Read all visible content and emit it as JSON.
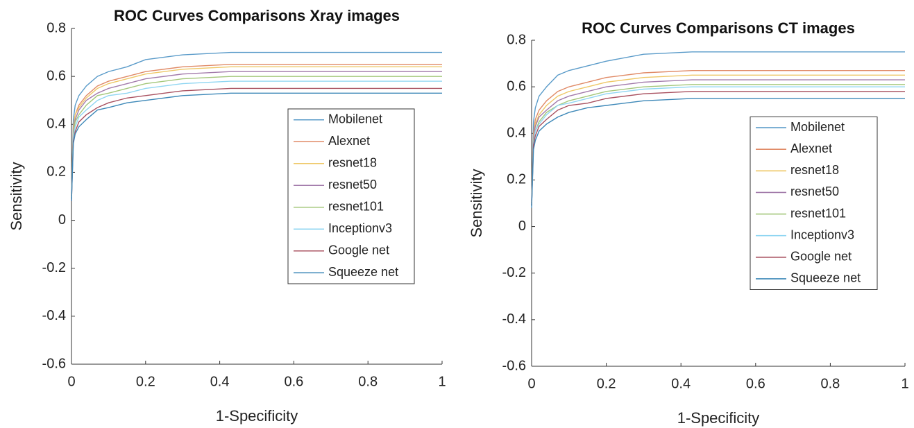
{
  "chart_data": [
    {
      "type": "line",
      "title": "ROC Curves Comparisons Xray images",
      "xlabel": "1-Specificity",
      "ylabel": "Sensitivity",
      "x": [
        0,
        0.005,
        0.01,
        0.02,
        0.04,
        0.07,
        0.1,
        0.15,
        0.2,
        0.3,
        0.43,
        1
      ],
      "xlim": [
        0,
        1
      ],
      "xticks": [
        0,
        0.2,
        0.4,
        0.6,
        0.8,
        1
      ],
      "ylim": [
        -0.6,
        0.8
      ],
      "yticks": [
        -0.6,
        -0.4,
        -0.2,
        0,
        0.2,
        0.4,
        0.6,
        0.8
      ],
      "legend": "east",
      "series": [
        {
          "name": "Mobilenet",
          "color": "#5a9bc9",
          "values": [
            0.11,
            0.42,
            0.48,
            0.52,
            0.56,
            0.6,
            0.62,
            0.64,
            0.67,
            0.69,
            0.7,
            0.7
          ]
        },
        {
          "name": "Alexnet",
          "color": "#e08a66",
          "values": [
            0.1,
            0.39,
            0.44,
            0.48,
            0.52,
            0.56,
            0.58,
            0.6,
            0.62,
            0.64,
            0.65,
            0.65
          ]
        },
        {
          "name": "resnet18",
          "color": "#eec766",
          "values": [
            0.1,
            0.38,
            0.44,
            0.47,
            0.51,
            0.55,
            0.57,
            0.59,
            0.61,
            0.63,
            0.64,
            0.64
          ]
        },
        {
          "name": "resnet50",
          "color": "#a27aaa",
          "values": [
            0.09,
            0.37,
            0.42,
            0.46,
            0.5,
            0.53,
            0.55,
            0.57,
            0.59,
            0.61,
            0.62,
            0.62
          ]
        },
        {
          "name": "resnet101",
          "color": "#a3c77a",
          "values": [
            0.09,
            0.36,
            0.41,
            0.44,
            0.48,
            0.52,
            0.53,
            0.55,
            0.57,
            0.59,
            0.6,
            0.6
          ]
        },
        {
          "name": "Inceptionv3",
          "color": "#8fd6f2",
          "values": [
            0.09,
            0.35,
            0.39,
            0.43,
            0.46,
            0.5,
            0.52,
            0.53,
            0.55,
            0.57,
            0.58,
            0.58
          ]
        },
        {
          "name": "Google net",
          "color": "#a8505f",
          "values": [
            0.08,
            0.33,
            0.37,
            0.41,
            0.44,
            0.47,
            0.49,
            0.51,
            0.52,
            0.54,
            0.55,
            0.55
          ]
        },
        {
          "name": "Squeeze net",
          "color": "#3d88b8",
          "values": [
            0.08,
            0.32,
            0.36,
            0.39,
            0.42,
            0.46,
            0.47,
            0.49,
            0.5,
            0.52,
            0.53,
            0.53
          ]
        }
      ]
    },
    {
      "type": "line",
      "title": "ROC Curves Comparisons CT images",
      "xlabel": "1-Specificity",
      "ylabel": "Sensitivity",
      "x": [
        0,
        0.005,
        0.01,
        0.02,
        0.04,
        0.07,
        0.1,
        0.15,
        0.2,
        0.3,
        0.43,
        1
      ],
      "xlim": [
        0,
        1
      ],
      "xticks": [
        0,
        0.2,
        0.4,
        0.6,
        0.8,
        1
      ],
      "ylim": [
        -0.6,
        0.8
      ],
      "yticks": [
        -0.6,
        -0.4,
        -0.2,
        0,
        0.2,
        0.4,
        0.6,
        0.8
      ],
      "legend": "east",
      "series": [
        {
          "name": "Mobilenet",
          "color": "#5a9bc9",
          "values": [
            0.11,
            0.45,
            0.51,
            0.56,
            0.6,
            0.65,
            0.67,
            0.69,
            0.71,
            0.74,
            0.75,
            0.75
          ]
        },
        {
          "name": "Alexnet",
          "color": "#e08a66",
          "values": [
            0.1,
            0.4,
            0.46,
            0.5,
            0.54,
            0.58,
            0.6,
            0.62,
            0.64,
            0.66,
            0.67,
            0.67
          ]
        },
        {
          "name": "resnet18",
          "color": "#eec766",
          "values": [
            0.1,
            0.39,
            0.44,
            0.48,
            0.52,
            0.56,
            0.58,
            0.6,
            0.62,
            0.64,
            0.65,
            0.65
          ]
        },
        {
          "name": "resnet50",
          "color": "#a27aaa",
          "values": [
            0.09,
            0.38,
            0.43,
            0.47,
            0.5,
            0.54,
            0.56,
            0.58,
            0.6,
            0.62,
            0.63,
            0.63
          ]
        },
        {
          "name": "resnet101",
          "color": "#a3c77a",
          "values": [
            0.09,
            0.37,
            0.41,
            0.45,
            0.49,
            0.52,
            0.54,
            0.56,
            0.58,
            0.6,
            0.61,
            0.61
          ]
        },
        {
          "name": "Inceptionv3",
          "color": "#8fd6f2",
          "values": [
            0.09,
            0.36,
            0.41,
            0.44,
            0.48,
            0.52,
            0.53,
            0.55,
            0.57,
            0.59,
            0.6,
            0.6
          ]
        },
        {
          "name": "Google net",
          "color": "#a8505f",
          "values": [
            0.09,
            0.35,
            0.39,
            0.43,
            0.46,
            0.5,
            0.52,
            0.53,
            0.55,
            0.57,
            0.58,
            0.58
          ]
        },
        {
          "name": "Squeeze net",
          "color": "#3d88b8",
          "values": [
            0.08,
            0.33,
            0.37,
            0.41,
            0.44,
            0.47,
            0.49,
            0.51,
            0.52,
            0.54,
            0.55,
            0.55
          ]
        }
      ]
    }
  ]
}
